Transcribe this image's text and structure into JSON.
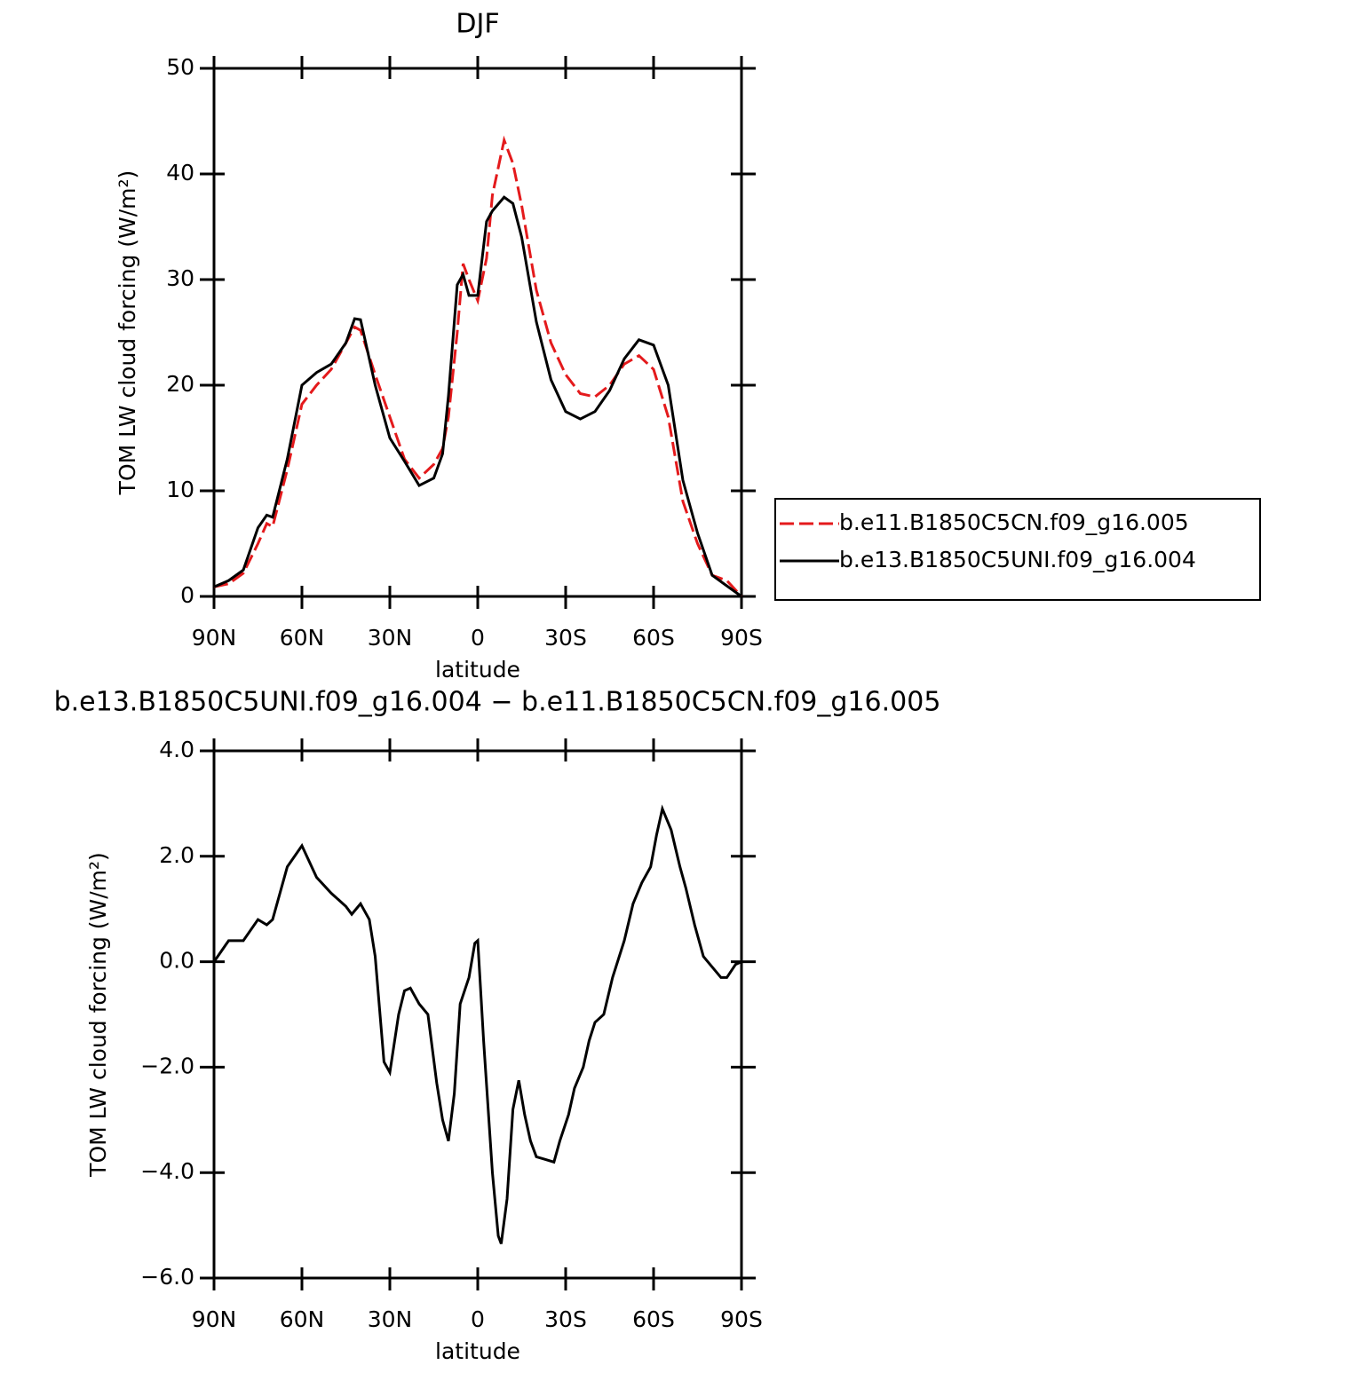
{
  "chart_data": [
    {
      "type": "line",
      "title": "DJF",
      "xlabel": "latitude",
      "ylabel": "TOM LW cloud forcing (W/m²)",
      "x": [
        90,
        85,
        80,
        75,
        72,
        70,
        65,
        60,
        55,
        50,
        45,
        42,
        40,
        35,
        30,
        25,
        20,
        15,
        12,
        10,
        7,
        5,
        3,
        0,
        -3,
        -5,
        -9,
        -12,
        -15,
        -20,
        -25,
        -30,
        -35,
        -40,
        -45,
        -50,
        -55,
        -60,
        -65,
        -70,
        -75,
        -80,
        -85,
        -90
      ],
      "xlim": [
        90,
        -90
      ],
      "xticks": [
        {
          "value": 90,
          "label": "90N"
        },
        {
          "value": 60,
          "label": "60N"
        },
        {
          "value": 30,
          "label": "30N"
        },
        0,
        {
          "value": -30,
          "label": "30S"
        },
        {
          "value": -60,
          "label": "60S"
        },
        {
          "value": -90,
          "label": "90S"
        }
      ],
      "ylim": [
        0,
        50
      ],
      "yticks": [
        0,
        10,
        20,
        30,
        40,
        50
      ],
      "legend": "outside-right",
      "series": [
        {
          "name": "b.e11.B1850C5CN.f09_g16.005",
          "color": "#e41a1c",
          "dash": true,
          "values": [
            0.9,
            1.2,
            2.2,
            5,
            6.9,
            6.6,
            12,
            18.2,
            20,
            21.5,
            24,
            25.5,
            25.2,
            21,
            17,
            13,
            11.2,
            12.5,
            14,
            17,
            25,
            31.5,
            30,
            28,
            32,
            38,
            43.2,
            41,
            37,
            29,
            24,
            21,
            19.2,
            18.9,
            20,
            22,
            22.8,
            21.5,
            17,
            9,
            5,
            2,
            1.5,
            0
          ]
        },
        {
          "name": "b.e13.B1850C5UNI.f09_g16.004",
          "color": "#000000",
          "dash": false,
          "values": [
            0.9,
            1.5,
            2.5,
            6.5,
            7.7,
            7.5,
            13,
            20,
            21.2,
            22,
            24,
            26.3,
            26.2,
            20,
            15,
            12.8,
            10.5,
            11.2,
            13.5,
            19,
            29.5,
            30.5,
            28.5,
            28.5,
            35.5,
            36.5,
            37.8,
            37.2,
            34,
            26,
            20.5,
            17.5,
            16.8,
            17.5,
            19.5,
            22.5,
            24.3,
            23.8,
            20,
            11,
            6,
            2,
            1,
            0
          ]
        }
      ]
    },
    {
      "type": "line",
      "title": "b.e13.B1850C5UNI.f09_g16.004 − b.e11.B1850C5CN.f09_g16.005",
      "xlabel": "latitude",
      "ylabel": "TOM LW cloud forcing (W/m²)",
      "x": [
        90,
        85,
        80,
        75,
        72,
        70,
        65,
        60,
        55,
        50,
        45,
        43,
        40,
        37,
        35,
        32,
        30,
        27,
        25,
        23,
        20,
        17,
        14,
        12,
        10,
        8,
        6,
        3,
        1,
        0,
        -2,
        -5,
        -7,
        -8,
        -10,
        -12,
        -14,
        -16,
        -18,
        -20,
        -23,
        -26,
        -28,
        -31,
        -33,
        -36,
        -38,
        -40,
        -43,
        -46,
        -50,
        -53,
        -56,
        -59,
        -61,
        -63,
        -66,
        -69,
        -71,
        -74,
        -77,
        -80,
        -83,
        -85,
        -88,
        -90
      ],
      "xlim": [
        90,
        -90
      ],
      "xticks": [
        {
          "value": 90,
          "label": "90N"
        },
        {
          "value": 60,
          "label": "60N"
        },
        {
          "value": 30,
          "label": "30N"
        },
        0,
        {
          "value": -30,
          "label": "30S"
        },
        {
          "value": -60,
          "label": "60S"
        },
        {
          "value": -90,
          "label": "90S"
        }
      ],
      "ylim": [
        -6,
        4
      ],
      "yticks": [
        {
          "value": -6,
          "label": "−6.0"
        },
        {
          "value": -4,
          "label": "−4.0"
        },
        {
          "value": -2,
          "label": "−2.0"
        },
        {
          "value": 0,
          "label": "0.0"
        },
        {
          "value": 2,
          "label": "2.0"
        },
        {
          "value": 4,
          "label": "4.0"
        }
      ],
      "series": [
        {
          "color": "#000000",
          "dash": false,
          "values": [
            0,
            0.4,
            0.4,
            0.8,
            0.7,
            0.8,
            1.8,
            2.2,
            1.6,
            1.3,
            1.05,
            0.9,
            1.1,
            0.8,
            0.1,
            -1.9,
            -2.1,
            -1,
            -0.55,
            -0.5,
            -0.8,
            -1,
            -2.3,
            -3,
            -3.4,
            -2.5,
            -0.8,
            -0.3,
            0.35,
            0.4,
            -1.5,
            -4,
            -5.2,
            -5.35,
            -4.5,
            -2.8,
            -2.25,
            -2.9,
            -3.4,
            -3.7,
            -3.75,
            -3.8,
            -3.4,
            -2.9,
            -2.4,
            -2,
            -1.5,
            -1.15,
            -1,
            -0.3,
            0.4,
            1.1,
            1.5,
            1.8,
            2.4,
            2.9,
            2.5,
            1.8,
            1.4,
            0.7,
            0.1,
            -0.1,
            -0.3,
            -0.3,
            -0.05,
            0
          ]
        }
      ]
    }
  ]
}
